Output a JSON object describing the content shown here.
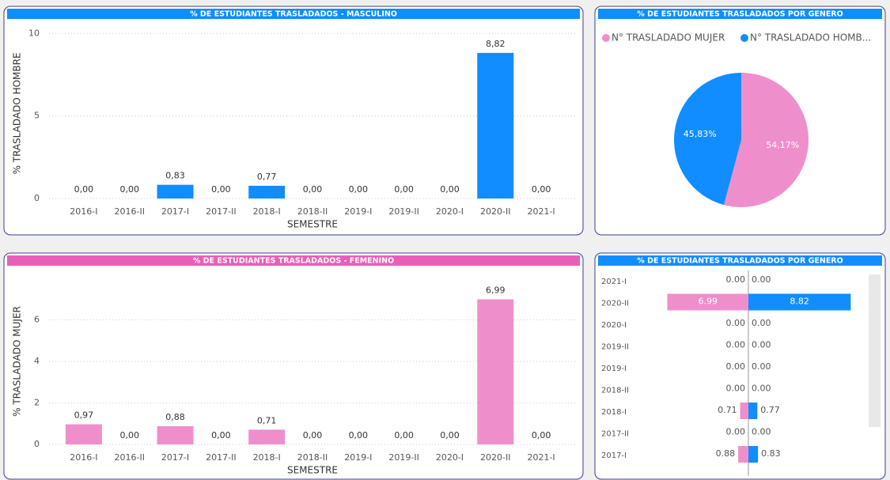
{
  "chart_data": [
    {
      "type": "bar",
      "title": "% DE ESTUDIANTES TRASLADADOS - MASCULINO",
      "header_color": "#118dff",
      "x_label": "SEMESTRE",
      "y_label": "% TRASLADADO HOMBRE",
      "categories": [
        "2016-I",
        "2016-II",
        "2017-I",
        "2017-II",
        "2018-I",
        "2018-II",
        "2019-I",
        "2019-II",
        "2020-I",
        "2020-II",
        "2021-I"
      ],
      "values": [
        0,
        0,
        0.83,
        0,
        0.77,
        0,
        0,
        0,
        0,
        8.82,
        0
      ],
      "value_labels": [
        "0,00",
        "0,00",
        "0,83",
        "0,00",
        "0,77",
        "0,00",
        "0,00",
        "0,00",
        "0,00",
        "8,82",
        "0,00"
      ],
      "color": "#118dff",
      "ylim": [
        0,
        10.3
      ],
      "yticks": [
        0,
        5,
        10
      ],
      "grid": true
    },
    {
      "type": "pie",
      "title": "% DE ESTUDIANTES TRASLADADOS POR GENERO",
      "header_color": "#118dff",
      "categories": [
        "N° TRASLADADO MUJER",
        "N° TRASLADADO HOMB..."
      ],
      "values": [
        54.17,
        45.83
      ],
      "value_labels": [
        "54,17%",
        "45,83%"
      ],
      "colors": [
        "#ee8fcc",
        "#118dff"
      ],
      "legend": "top"
    },
    {
      "type": "bar",
      "title": "% DE ESTUDIANTES TRASLADADOS - FEMENINO",
      "header_color": "#e85fb7",
      "x_label": "SEMESTRE",
      "y_label": "% TRASLADADO MUJER",
      "categories": [
        "2016-I",
        "2016-II",
        "2017-I",
        "2017-II",
        "2018-I",
        "2018-II",
        "2019-I",
        "2019-II",
        "2020-I",
        "2020-II",
        "2021-I"
      ],
      "values": [
        0.97,
        0,
        0.88,
        0,
        0.71,
        0,
        0,
        0,
        0,
        6.99,
        0
      ],
      "value_labels": [
        "0,97",
        "0,00",
        "0,88",
        "0,00",
        "0,71",
        "0,00",
        "0,00",
        "0,00",
        "0,00",
        "6,99",
        "0,00"
      ],
      "color": "#ee8fcc",
      "ylim": [
        0,
        8
      ],
      "yticks": [
        0,
        2,
        4,
        6
      ],
      "grid": true
    },
    {
      "type": "butterfly",
      "title": "% DE ESTUDIANTES TRASLADADOS POR GENERO",
      "header_color": "#118dff",
      "categories": [
        "2021-I",
        "2020-II",
        "2020-I",
        "2019-II",
        "2019-I",
        "2018-II",
        "2018-I",
        "2017-II",
        "2017-I"
      ],
      "xlim": [
        0,
        9
      ],
      "series": [
        {
          "color": "#ee8fcc",
          "values": [
            0,
            6.99,
            0,
            0,
            0,
            0,
            0.71,
            0,
            0.88
          ],
          "value_labels": [
            "0.00",
            "6.99",
            "0.00",
            "0.00",
            "0.00",
            "0.00",
            "0.71",
            "0.00",
            "0.88"
          ]
        },
        {
          "color": "#118dff",
          "values": [
            0,
            8.82,
            0,
            0,
            0,
            0,
            0.77,
            0,
            0.83
          ],
          "value_labels": [
            "0.00",
            "8.82",
            "0.00",
            "0.00",
            "0.00",
            "0.00",
            "0.77",
            "0.00",
            "0.83"
          ]
        }
      ]
    }
  ]
}
